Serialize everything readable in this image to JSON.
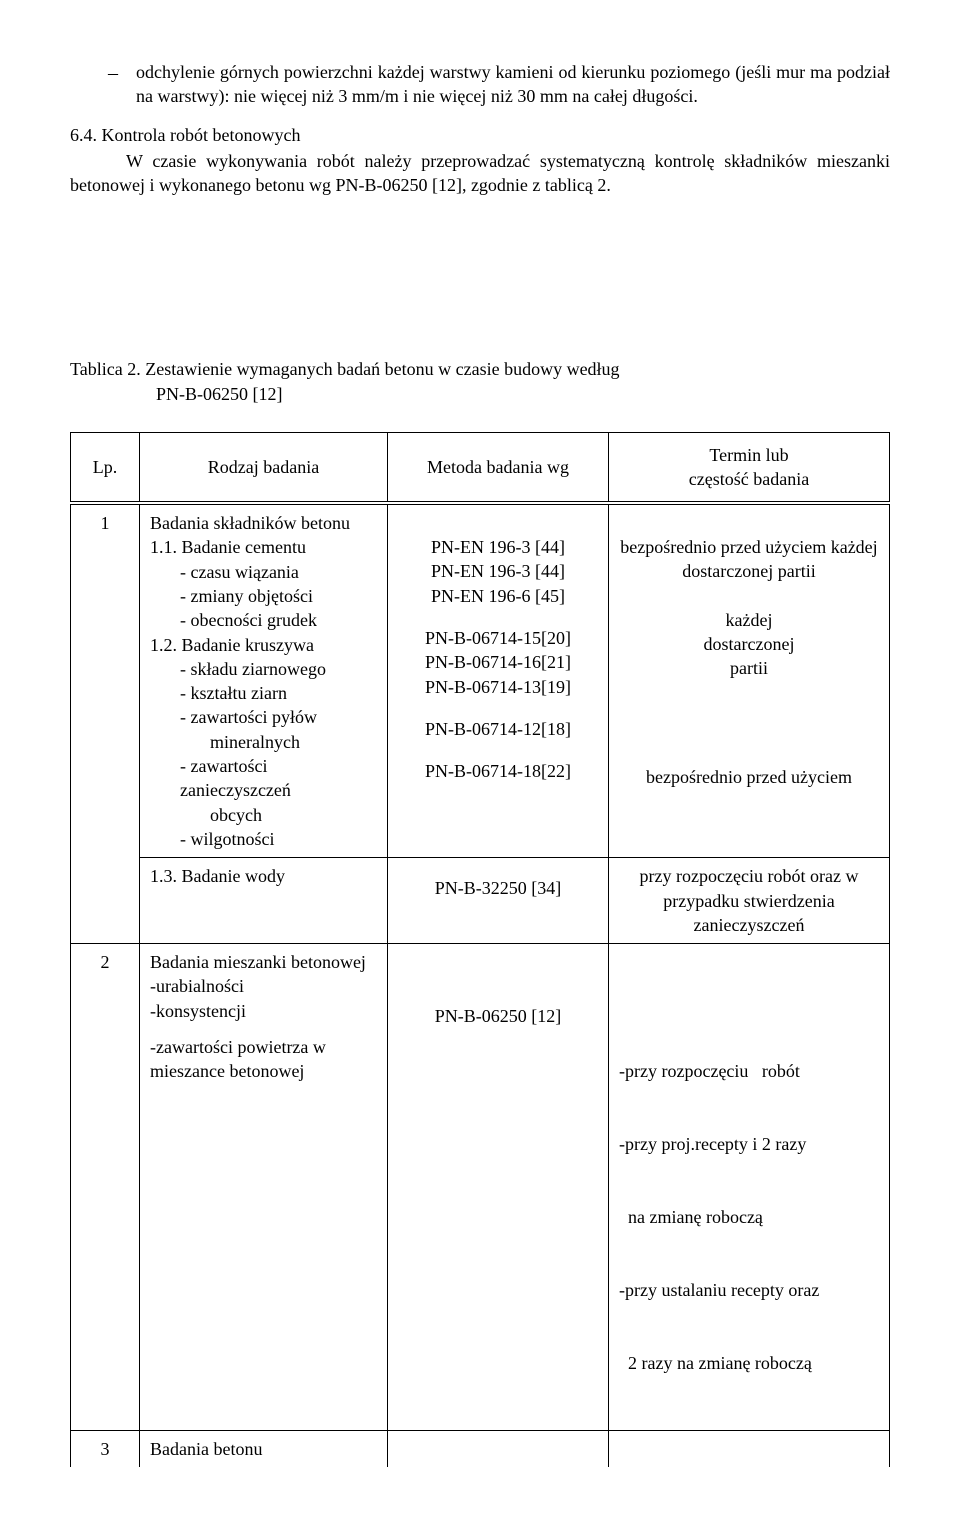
{
  "intro": {
    "bullet_dash": "–",
    "bullet_text": "odchylenie górnych powierzchni każdej warstwy kamieni od kierunku poziomego (jeśli mur ma podział na warstwy): nie więcej niż 3 mm/m i nie więcej niż 30 mm na całej długości."
  },
  "section64": {
    "heading": "6.4. Kontrola robót betonowych",
    "body": "W czasie wykonywania robót należy przeprowadzać systematyczną kontrolę składników mieszanki betonowej i wykonanego betonu wg PN-B-06250 [12], zgodnie z tablicą 2."
  },
  "tablica": {
    "caption_line1": "Tablica 2. Zestawienie wymaganych badań betonu w czasie budowy według",
    "caption_line2": "PN-B-06250 [12]",
    "headers": {
      "lp": "Lp.",
      "rodzaj": "Rodzaj badania",
      "metoda": "Metoda badania wg",
      "termin": "Termin lub\nczęstość badania"
    },
    "row1": {
      "lp": "1",
      "col2": {
        "l1": "Badania składników betonu",
        "l2": "1.1. Badanie cementu",
        "l3": "- czasu wiązania",
        "l4": "- zmiany objętości",
        "l5": "- obecności grudek",
        "l6": "1.2. Badanie kruszywa",
        "l7": "- składu ziarnowego",
        "l8": "- kształtu ziarn",
        "l9": "- zawartości pyłów",
        "l10": "mineralnych",
        "l11": "- zawartości zanieczyszczeń",
        "l12": "obcych",
        "l13": "- wilgotności"
      },
      "col3": {
        "m1": "PN-EN 196-3 [44]",
        "m2": "PN-EN 196-3 [44]",
        "m3": "PN-EN 196-6 [45]",
        "m4": "PN-B-06714-15[20]",
        "m5": "PN-B-06714-16[21]",
        "m6": "PN-B-06714-13[19]",
        "m7": "PN-B-06714-12[18]",
        "m8": "PN-B-06714-18[22]"
      },
      "col4": {
        "t1": "bezpośrednio przed użyciem każdej dostarczonej partii",
        "t2a": "każdej",
        "t2b": "dostarczonej",
        "t2c": "partii",
        "t3": "bezpośrednio przed użyciem"
      }
    },
    "row1b": {
      "col2": "1.3. Badanie wody",
      "col3": "PN-B-32250 [34]",
      "col4": "przy rozpoczęciu robót oraz w przypadku stwierdzenia zanieczyszczeń"
    },
    "row2": {
      "lp": "2",
      "col2": {
        "l1": "Badania mieszanki betonowej",
        "l2": "-urabialności",
        "l3": "-konsystencji",
        "l4": "-zawartości powietrza w",
        "l5": " mieszance betonowej"
      },
      "col3": "PN-B-06250 [12]",
      "col4": {
        "t1": "-przy rozpoczęciu   robót",
        "t2": "-przy proj.recepty i 2 razy",
        "t3": "  na zmianę roboczą",
        "t4": "-przy ustalaniu recepty oraz",
        "t5": "  2 razy na zmianę roboczą"
      }
    },
    "row3": {
      "lp": "3",
      "col2": "Badania betonu"
    }
  }
}
